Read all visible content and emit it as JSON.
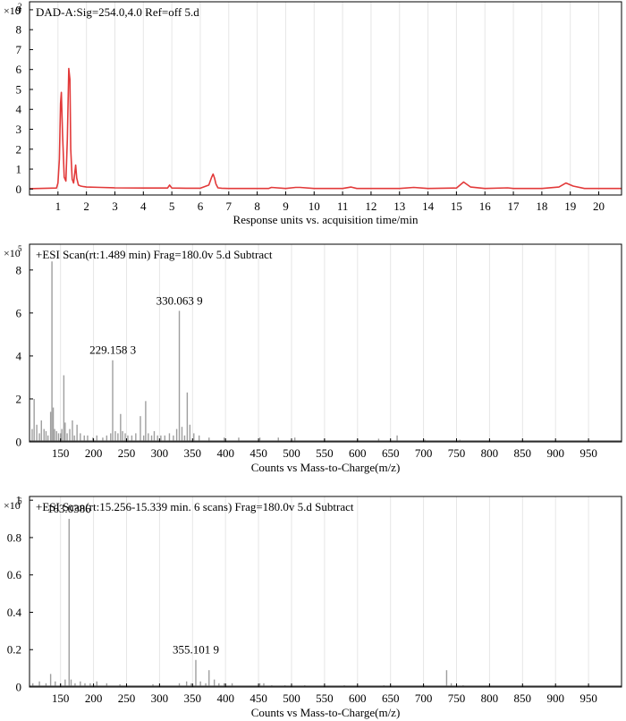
{
  "chart_data": [
    {
      "type": "line",
      "title": "DAD-A:Sig=254.0,4.0 Ref=off 5.d",
      "xlabel": "Response units vs. acquisition time/min",
      "ylabel": "",
      "y_multiplier": "×10",
      "y_exponent": "2",
      "xlim": [
        0,
        20.8
      ],
      "ylim": [
        -0.3,
        9.4
      ],
      "x_ticks": [
        1,
        2,
        3,
        4,
        5,
        6,
        7,
        8,
        9,
        10,
        11,
        12,
        13,
        14,
        15,
        16,
        17,
        18,
        19,
        20
      ],
      "y_ticks": [
        0,
        1,
        2,
        3,
        4,
        5,
        6,
        7,
        8,
        9
      ],
      "line_color": "#e23a3a",
      "grid": true,
      "series": [
        {
          "x": [
            0.0,
            0.95,
            1.0,
            1.05,
            1.09,
            1.12,
            1.16,
            1.22,
            1.28,
            1.33,
            1.38,
            1.42,
            1.45,
            1.5,
            1.55,
            1.59,
            1.62,
            1.66,
            1.72,
            1.8,
            1.9,
            2.0,
            2.5,
            3,
            4,
            4.85,
            4.92,
            5.0,
            5.5,
            6.0,
            6.3,
            6.4,
            6.45,
            6.5,
            6.55,
            6.62,
            6.75,
            7,
            8,
            8.4,
            8.5,
            9,
            9.35,
            9.5,
            10,
            11,
            11.3,
            11.5,
            12,
            13,
            13.5,
            14,
            15,
            15.25,
            15.5,
            16,
            16.8,
            17,
            18,
            18.6,
            18.85,
            19.1,
            19.5,
            20,
            20.8
          ],
          "y": [
            0.02,
            0.05,
            0.3,
            1.5,
            4.3,
            4.85,
            2.8,
            0.6,
            0.4,
            2.5,
            6.05,
            5.5,
            2.0,
            0.5,
            0.3,
            0.8,
            1.2,
            0.55,
            0.2,
            0.15,
            0.12,
            0.1,
            0.08,
            0.06,
            0.05,
            0.05,
            0.2,
            0.05,
            0.04,
            0.04,
            0.2,
            0.6,
            0.75,
            0.55,
            0.25,
            0.06,
            0.04,
            0.03,
            0.03,
            0.03,
            0.08,
            0.03,
            0.08,
            0.08,
            0.03,
            0.03,
            0.1,
            0.03,
            0.03,
            0.03,
            0.08,
            0.03,
            0.05,
            0.35,
            0.1,
            0.03,
            0.06,
            0.03,
            0.03,
            0.1,
            0.3,
            0.15,
            0.03,
            0.03,
            0.03
          ]
        }
      ]
    },
    {
      "type": "bar",
      "title": "+ESI Scan(rt:1.489 min) Frag=180.0v 5.d Subtract",
      "xlabel": "Counts vs Mass-to-Charge(m/z)",
      "ylabel": "",
      "y_multiplier": "×10",
      "y_exponent": "5",
      "xlim": [
        103,
        1000
      ],
      "ylim": [
        0,
        9.2
      ],
      "x_ticks": [
        150,
        200,
        250,
        300,
        350,
        400,
        450,
        500,
        550,
        600,
        650,
        700,
        750,
        800,
        850,
        900,
        950
      ],
      "y_ticks": [
        0,
        2,
        4,
        6,
        8
      ],
      "bar_color": "#9e9e9e",
      "grid": true,
      "annotations": [
        {
          "text": "330.063 9",
          "x": 330.06,
          "y": 6.1
        },
        {
          "text": "229.158 3",
          "x": 229.16,
          "y": 3.8
        }
      ],
      "x": [
        107,
        110,
        114,
        118,
        121,
        125,
        128,
        131,
        135,
        137,
        139,
        141,
        144,
        147,
        150,
        152,
        155,
        157,
        160,
        164,
        168,
        171,
        175,
        180,
        186,
        191,
        199,
        205,
        214,
        220,
        226,
        229,
        233,
        237,
        241,
        244,
        248,
        252,
        258,
        264,
        271,
        276,
        279,
        283,
        288,
        292,
        297,
        302,
        308,
        315,
        321,
        326,
        330,
        334,
        338,
        342,
        346,
        352,
        360,
        375,
        398,
        420,
        452,
        480,
        505,
        550,
        600,
        632,
        660,
        702,
        755
      ],
      "y": [
        0.6,
        2.0,
        0.8,
        0.4,
        1.0,
        0.6,
        0.5,
        0.3,
        1.4,
        8.4,
        1.6,
        0.6,
        0.5,
        0.4,
        0.4,
        0.6,
        3.1,
        0.9,
        0.4,
        0.6,
        1.0,
        0.3,
        0.8,
        0.4,
        0.3,
        0.3,
        0.2,
        0.3,
        0.2,
        0.3,
        0.4,
        3.8,
        0.5,
        0.4,
        1.3,
        0.5,
        0.4,
        0.3,
        0.3,
        0.4,
        1.2,
        0.3,
        1.9,
        0.4,
        0.3,
        0.5,
        0.3,
        0.3,
        0.3,
        0.4,
        0.3,
        0.6,
        6.1,
        0.7,
        0.3,
        2.3,
        0.8,
        0.4,
        0.3,
        0.2,
        0.2,
        0.2,
        0.2,
        0.2,
        0.2,
        0.15,
        0.15,
        0.15,
        0.3,
        0.1,
        0.1
      ]
    },
    {
      "type": "bar",
      "title": "+ESI Scan(rt:15.256-15.339 min. 6 scans) Frag=180.0v 5.d Subtract",
      "xlabel": "Counts vs Mass-to-Charge(m/z)",
      "ylabel": "",
      "y_multiplier": "×10",
      "y_exponent": "6",
      "xlim": [
        103,
        1000
      ],
      "ylim": [
        0,
        1.02
      ],
      "x_ticks": [
        150,
        200,
        250,
        300,
        350,
        400,
        450,
        500,
        550,
        600,
        650,
        700,
        750,
        800,
        850,
        900,
        950
      ],
      "y_ticks": [
        0,
        0.2,
        0.4,
        0.6,
        0.8,
        1
      ],
      "y_tick_labels": [
        "0",
        "0.2",
        "0.4",
        "0.6",
        "0.8",
        "1"
      ],
      "bar_color": "#9e9e9e",
      "grid": true,
      "annotations": [
        {
          "text": "163.0386",
          "x": 163.04,
          "y": 0.9
        },
        {
          "text": "355.101 9",
          "x": 355.1,
          "y": 0.145
        }
      ],
      "x": [
        108,
        118,
        128,
        135,
        142,
        150,
        157,
        163,
        166,
        172,
        180,
        187,
        195,
        205,
        220,
        240,
        290,
        330,
        341,
        348,
        355,
        362,
        370,
        375,
        383,
        390,
        398,
        410,
        452,
        458,
        470,
        490,
        520,
        580,
        640,
        700,
        735,
        742,
        760
      ],
      "y": [
        0.02,
        0.03,
        0.02,
        0.07,
        0.03,
        0.02,
        0.04,
        0.9,
        0.04,
        0.02,
        0.03,
        0.02,
        0.02,
        0.03,
        0.02,
        0.015,
        0.015,
        0.02,
        0.03,
        0.02,
        0.145,
        0.03,
        0.02,
        0.09,
        0.04,
        0.02,
        0.02,
        0.02,
        0.02,
        0.02,
        0.01,
        0.01,
        0.01,
        0.01,
        0.01,
        0.01,
        0.09,
        0.02,
        0.01
      ]
    }
  ]
}
